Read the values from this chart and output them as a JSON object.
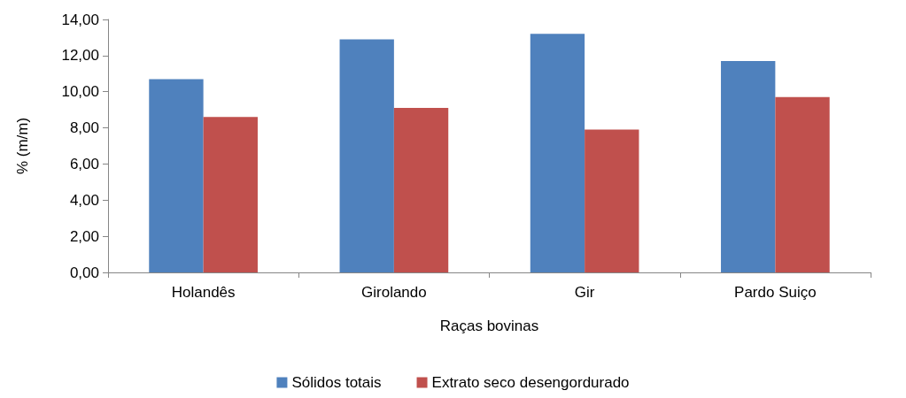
{
  "chart_data": {
    "type": "bar",
    "xlabel": "Raças bovinas",
    "ylabel": "% (m/m)",
    "categories": [
      "Holandês",
      "Girolando",
      "Gir",
      "Pardo Suiço"
    ],
    "series": [
      {
        "name": "Sólidos totais",
        "color": "#4f81bd",
        "values": [
          10.7,
          12.9,
          13.2,
          11.7
        ]
      },
      {
        "name": "Extrato seco desengordurado",
        "color": "#c0504d",
        "values": [
          8.6,
          9.1,
          7.9,
          9.7
        ]
      }
    ],
    "ylim": [
      0,
      14
    ],
    "yticks": [
      {
        "value": 0,
        "label": "0,00"
      },
      {
        "value": 2,
        "label": "2,00"
      },
      {
        "value": 4,
        "label": "4,00"
      },
      {
        "value": 6,
        "label": "6,00"
      },
      {
        "value": 8,
        "label": "8,00"
      },
      {
        "value": 10,
        "label": "10,00"
      },
      {
        "value": 12,
        "label": "12,00"
      },
      {
        "value": 14,
        "label": "14,00"
      }
    ],
    "grid": false,
    "legend": "bottom"
  }
}
